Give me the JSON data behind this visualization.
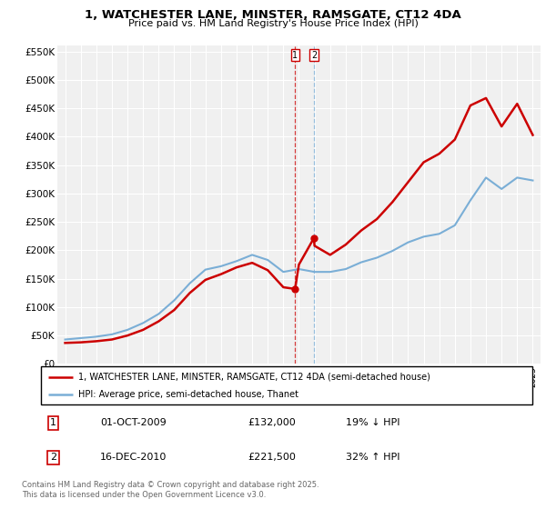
{
  "title": "1, WATCHESTER LANE, MINSTER, RAMSGATE, CT12 4DA",
  "subtitle": "Price paid vs. HM Land Registry's House Price Index (HPI)",
  "legend_line1": "1, WATCHESTER LANE, MINSTER, RAMSGATE, CT12 4DA (semi-detached house)",
  "legend_line2": "HPI: Average price, semi-detached house, Thanet",
  "footnote": "Contains HM Land Registry data © Crown copyright and database right 2025.\nThis data is licensed under the Open Government Licence v3.0.",
  "transaction1_date": "01-OCT-2009",
  "transaction1_price": "£132,000",
  "transaction1_hpi": "19% ↓ HPI",
  "transaction2_date": "16-DEC-2010",
  "transaction2_price": "£221,500",
  "transaction2_hpi": "32% ↑ HPI",
  "vline1_x": 2009.75,
  "vline2_x": 2010.96,
  "marker1_x": 2009.75,
  "marker1_y": 132000,
  "marker2_x": 2010.96,
  "marker2_y": 221500,
  "ylim": [
    0,
    560000
  ],
  "xlim": [
    1994.5,
    2025.5
  ],
  "red_color": "#cc0000",
  "blue_color": "#7aaed6",
  "background_color": "#f0f0f0",
  "hpi_years": [
    1995,
    1996,
    1997,
    1998,
    1999,
    2000,
    2001,
    2002,
    2003,
    2004,
    2005,
    2006,
    2007,
    2008,
    2009,
    2010,
    2011,
    2012,
    2013,
    2014,
    2015,
    2016,
    2017,
    2018,
    2019,
    2020,
    2021,
    2022,
    2023,
    2024,
    2025
  ],
  "hpi_values": [
    43000,
    45500,
    48000,
    52000,
    60000,
    72000,
    88000,
    112000,
    142000,
    166000,
    172000,
    181000,
    192000,
    183000,
    162000,
    167000,
    162000,
    162000,
    167000,
    179000,
    187000,
    199000,
    214000,
    224000,
    229000,
    244000,
    288000,
    328000,
    308000,
    328000,
    323000
  ],
  "price_years": [
    1995,
    1996,
    1997,
    1998,
    1999,
    2000,
    2001,
    2002,
    2003,
    2004,
    2005,
    2006,
    2007,
    2008,
    2009,
    2009.75,
    2010,
    2010.96,
    2011,
    2012,
    2013,
    2014,
    2015,
    2016,
    2017,
    2018,
    2019,
    2020,
    2021,
    2022,
    2023,
    2024,
    2025
  ],
  "price_values": [
    37000,
    38000,
    40000,
    43000,
    50000,
    60000,
    75000,
    95000,
    125000,
    148000,
    158000,
    170000,
    178000,
    165000,
    135000,
    132000,
    175000,
    221500,
    208000,
    192000,
    210000,
    235000,
    255000,
    285000,
    320000,
    355000,
    370000,
    395000,
    455000,
    468000,
    418000,
    458000,
    403000
  ]
}
